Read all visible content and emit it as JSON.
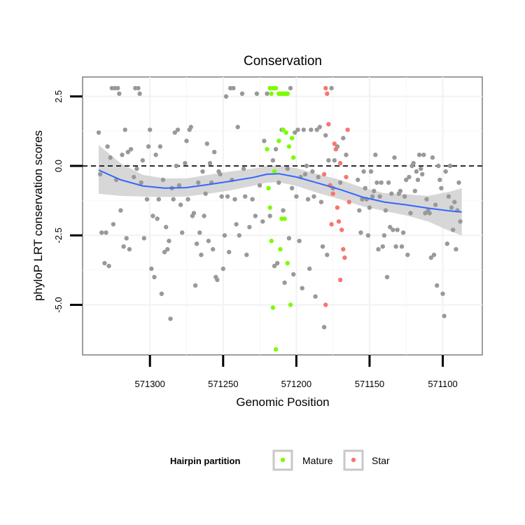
{
  "chart_data": {
    "type": "scatter",
    "title": "Conservation",
    "xlabel": "Genomic Position",
    "ylabel": "phyloP LRT conservation scores",
    "x_reversed": true,
    "xlim": [
      571073,
      571346
    ],
    "ylim": [
      -6.8,
      3.2
    ],
    "x_ticks": [
      571300,
      571250,
      571200,
      571150,
      571100
    ],
    "x_tick_labels": [
      "571300",
      "571250",
      "571200",
      "571150",
      "571100"
    ],
    "y_ticks": [
      2.5,
      0.0,
      -2.5,
      -5.0
    ],
    "y_tick_labels": [
      "2.5",
      "0.0",
      "-2.5",
      "-5.0"
    ],
    "reference_line": {
      "y": 0,
      "style": "dashed"
    },
    "legend": {
      "title": "Hairpin partition",
      "position": "bottom",
      "entries": [
        {
          "label": "Mature",
          "color": "#7CFC00"
        },
        {
          "label": "Star",
          "color": "#F8766D"
        }
      ]
    },
    "colors": {
      "other": "#999999",
      "mature": "#7CFC00",
      "star": "#F8766D",
      "smooth_line": "#3366FF",
      "band": "#d3d3d3"
    },
    "series": [
      {
        "name": "Other",
        "points": [
          [
            571335,
            1.2
          ],
          [
            571334,
            -0.3
          ],
          [
            571333,
            -2.4
          ],
          [
            571331,
            -3.5
          ],
          [
            571330,
            -2.4
          ],
          [
            571329,
            0.7
          ],
          [
            571328,
            -3.6
          ],
          [
            571327,
            0.3
          ],
          [
            571326,
            2.8
          ],
          [
            571325,
            -2.1
          ],
          [
            571324,
            2.8
          ],
          [
            571323,
            -0.5
          ],
          [
            571322,
            2.8
          ],
          [
            571321,
            2.6
          ],
          [
            571320,
            -1.6
          ],
          [
            571319,
            0.4
          ],
          [
            571318,
            -2.9
          ],
          [
            571317,
            1.3
          ],
          [
            571316,
            -2.6
          ],
          [
            571315,
            0.5
          ],
          [
            571314,
            -3.0
          ],
          [
            571313,
            0.6
          ],
          [
            571311,
            -0.4
          ],
          [
            571310,
            2.8
          ],
          [
            571309,
            -0.1
          ],
          [
            571308,
            2.8
          ],
          [
            571307,
            2.6
          ],
          [
            571306,
            -0.6
          ],
          [
            571305,
            0.2
          ],
          [
            571304,
            -2.6
          ],
          [
            571302,
            -1.2
          ],
          [
            571301,
            0.7
          ],
          [
            571300,
            1.3
          ],
          [
            571299,
            -3.7
          ],
          [
            571298,
            -1.8
          ],
          [
            571297,
            -4.0
          ],
          [
            571296,
            0.4
          ],
          [
            571295,
            -1.9
          ],
          [
            571294,
            -1.2
          ],
          [
            571293,
            0.7
          ],
          [
            571292,
            -4.6
          ],
          [
            571291,
            -0.5
          ],
          [
            571290,
            -3.1
          ],
          [
            571289,
            -2.2
          ],
          [
            571288,
            -3.0
          ],
          [
            571287,
            -2.7
          ],
          [
            571286,
            -5.5
          ],
          [
            571285,
            -0.8
          ],
          [
            571284,
            -1.2
          ],
          [
            571283,
            1.2
          ],
          [
            571282,
            0.0
          ],
          [
            571281,
            1.3
          ],
          [
            571280,
            -0.7
          ],
          [
            571279,
            -1.4
          ],
          [
            571278,
            -2.4
          ],
          [
            571276,
            0.1
          ],
          [
            571275,
            0.9
          ],
          [
            571274,
            -1.2
          ],
          [
            571273,
            1.3
          ],
          [
            571272,
            1.4
          ],
          [
            571271,
            -1.8
          ],
          [
            571270,
            -1.7
          ],
          [
            571269,
            -4.3
          ],
          [
            571268,
            -2.8
          ],
          [
            571267,
            -0.6
          ],
          [
            571266,
            -2.4
          ],
          [
            571265,
            -3.2
          ],
          [
            571264,
            -0.2
          ],
          [
            571263,
            -1.8
          ],
          [
            571262,
            -1.0
          ],
          [
            571261,
            0.8
          ],
          [
            571260,
            -2.7
          ],
          [
            571259,
            0.1
          ],
          [
            571258,
            -0.6
          ],
          [
            571257,
            -3.0
          ],
          [
            571256,
            0.5
          ],
          [
            571255,
            -4.0
          ],
          [
            571254,
            -4.1
          ],
          [
            571253,
            -0.2
          ],
          [
            571252,
            -0.3
          ],
          [
            571251,
            -1.1
          ],
          [
            571250,
            -3.7
          ],
          [
            571249,
            -2.5
          ],
          [
            571248,
            2.5
          ],
          [
            571247,
            -1.1
          ],
          [
            571246,
            -3.1
          ],
          [
            571245,
            2.8
          ],
          [
            571244,
            -0.5
          ],
          [
            571243,
            2.8
          ],
          [
            571242,
            -1.2
          ],
          [
            571241,
            -2.1
          ],
          [
            571240,
            1.4
          ],
          [
            571239,
            -2.5
          ],
          [
            571237,
            2.6
          ],
          [
            571236,
            -0.1
          ],
          [
            571235,
            -1.1
          ],
          [
            571234,
            -3.2
          ],
          [
            571232,
            -2.2
          ],
          [
            571230,
            -1.2
          ],
          [
            571228,
            -1.8
          ],
          [
            571227,
            2.6
          ],
          [
            571225,
            -0.7
          ],
          [
            571223,
            -2.0
          ],
          [
            571222,
            0.9
          ],
          [
            571220,
            2.6
          ],
          [
            571218,
            -1.8
          ],
          [
            571216,
            0.2
          ],
          [
            571215,
            -3.6
          ],
          [
            571214,
            0.6
          ],
          [
            571213,
            -3.5
          ],
          [
            571212,
            -0.6
          ],
          [
            571210,
            1.3
          ],
          [
            571209,
            -1.6
          ],
          [
            571208,
            -4.2
          ],
          [
            571206,
            -0.1
          ],
          [
            571205,
            -2.6
          ],
          [
            571204,
            2.8
          ],
          [
            571203,
            -0.8
          ],
          [
            571202,
            -3.9
          ],
          [
            571201,
            1.2
          ],
          [
            571200,
            -1.1
          ],
          [
            571199,
            1.3
          ],
          [
            571198,
            -2.7
          ],
          [
            571197,
            -0.4
          ],
          [
            571196,
            -4.4
          ],
          [
            571195,
            1.3
          ],
          [
            571194,
            -0.3
          ],
          [
            571193,
            0.0
          ],
          [
            571192,
            -1.2
          ],
          [
            571191,
            -3.7
          ],
          [
            571190,
            1.3
          ],
          [
            571189,
            -0.2
          ],
          [
            571188,
            -1.1
          ],
          [
            571187,
            -4.7
          ],
          [
            571186,
            1.3
          ],
          [
            571185,
            -0.4
          ],
          [
            571184,
            1.4
          ],
          [
            571183,
            -1.3
          ],
          [
            571182,
            -2.9
          ],
          [
            571181,
            -5.8
          ],
          [
            571180,
            1.1
          ],
          [
            571179,
            -3.2
          ],
          [
            571178,
            0.2
          ],
          [
            571177,
            -0.7
          ],
          [
            571176,
            2.8
          ],
          [
            571175,
            -0.8
          ],
          [
            571174,
            0.2
          ],
          [
            571172,
            0.7
          ],
          [
            571170,
            -0.6
          ],
          [
            571168,
            1.0
          ],
          [
            571166,
            0.4
          ],
          [
            571158,
            -0.5
          ],
          [
            571157,
            -1.6
          ],
          [
            571156,
            -2.4
          ],
          [
            571155,
            -1.2
          ],
          [
            571154,
            -0.2
          ],
          [
            571153,
            -0.8
          ],
          [
            571152,
            -1.2
          ],
          [
            571151,
            -2.5
          ],
          [
            571150,
            -1.5
          ],
          [
            571149,
            -0.2
          ],
          [
            571148,
            -1.1
          ],
          [
            571147,
            -0.9
          ],
          [
            571146,
            0.4
          ],
          [
            571145,
            -0.6
          ],
          [
            571144,
            -3.0
          ],
          [
            571143,
            -1.1
          ],
          [
            571142,
            -0.6
          ],
          [
            571141,
            -2.9
          ],
          [
            571140,
            -2.5
          ],
          [
            571139,
            -1.6
          ],
          [
            571138,
            -4.0
          ],
          [
            571137,
            -0.6
          ],
          [
            571136,
            -2.2
          ],
          [
            571135,
            -1.0
          ],
          [
            571134,
            -2.3
          ],
          [
            571133,
            0.3
          ],
          [
            571132,
            -2.9
          ],
          [
            571131,
            -2.3
          ],
          [
            571130,
            -1.0
          ],
          [
            571129,
            -0.9
          ],
          [
            571128,
            -2.9
          ],
          [
            571127,
            -2.4
          ],
          [
            571126,
            -1.1
          ],
          [
            571125,
            -0.5
          ],
          [
            571124,
            -3.2
          ],
          [
            571123,
            -0.4
          ],
          [
            571122,
            -1.7
          ],
          [
            571121,
            0.0
          ],
          [
            571120,
            0.1
          ],
          [
            571119,
            -0.9
          ],
          [
            571118,
            -0.2
          ],
          [
            571117,
            -0.5
          ],
          [
            571116,
            0.4
          ],
          [
            571115,
            -0.1
          ],
          [
            571114,
            -0.3
          ],
          [
            571113,
            0.4
          ],
          [
            571112,
            -1.7
          ],
          [
            571111,
            -1.2
          ],
          [
            571110,
            -1.6
          ],
          [
            571109,
            -1.7
          ],
          [
            571108,
            -3.3
          ],
          [
            571107,
            0.3
          ],
          [
            571106,
            -3.2
          ],
          [
            571105,
            -1.4
          ],
          [
            571104,
            -4.3
          ],
          [
            571103,
            0.0
          ],
          [
            571102,
            -0.5
          ],
          [
            571101,
            -0.8
          ],
          [
            571100,
            -4.6
          ],
          [
            571099,
            -5.4
          ],
          [
            571098,
            -0.2
          ],
          [
            571097,
            -2.8
          ],
          [
            571096,
            -1.1
          ],
          [
            571095,
            0.0
          ],
          [
            571094,
            -1.5
          ],
          [
            571093,
            -2.3
          ],
          [
            571092,
            -1.3
          ],
          [
            571091,
            -3.0
          ],
          [
            571090,
            -1.6
          ],
          [
            571089,
            -0.6
          ],
          [
            571088,
            -2.0
          ]
        ]
      },
      {
        "name": "Mature",
        "points": [
          [
            571218,
            2.8
          ],
          [
            571217,
            2.6
          ],
          [
            571216,
            2.8
          ],
          [
            571215,
            2.8
          ],
          [
            571214,
            2.8
          ],
          [
            571212,
            2.6
          ],
          [
            571211,
            2.6
          ],
          [
            571210,
            2.6
          ],
          [
            571209,
            2.6
          ],
          [
            571208,
            2.6
          ],
          [
            571207,
            2.6
          ],
          [
            571206,
            2.6
          ],
          [
            571220,
            0.6
          ],
          [
            571219,
            -0.8
          ],
          [
            571218,
            -1.5
          ],
          [
            571217,
            -2.7
          ],
          [
            571216,
            -5.1
          ],
          [
            571215,
            -0.2
          ],
          [
            571214,
            -6.6
          ],
          [
            571212,
            0.9
          ],
          [
            571211,
            -3.0
          ],
          [
            571210,
            -1.9
          ],
          [
            571209,
            1.3
          ],
          [
            571208,
            -1.9
          ],
          [
            571207,
            1.2
          ],
          [
            571206,
            -3.5
          ],
          [
            571205,
            0.7
          ],
          [
            571204,
            -5.0
          ],
          [
            571203,
            1.0
          ],
          [
            571202,
            0.3
          ]
        ]
      },
      {
        "name": "Star",
        "points": [
          [
            571181,
            -0.3
          ],
          [
            571180,
            2.8
          ],
          [
            571179,
            2.6
          ],
          [
            571178,
            1.5
          ],
          [
            571177,
            -0.7
          ],
          [
            571176,
            -2.1
          ],
          [
            571175,
            -1.0
          ],
          [
            571174,
            0.8
          ],
          [
            571173,
            0.6
          ],
          [
            571172,
            -1.5
          ],
          [
            571171,
            -2.0
          ],
          [
            571170,
            0.1
          ],
          [
            571169,
            -2.3
          ],
          [
            571168,
            -3.0
          ],
          [
            571167,
            -3.3
          ],
          [
            571166,
            -0.4
          ],
          [
            571165,
            1.3
          ],
          [
            571164,
            -1.3
          ],
          [
            571180,
            -5.0
          ],
          [
            571170,
            -4.1
          ]
        ]
      },
      {
        "name": "LOESS fit",
        "x": [
          571335,
          571320,
          571305,
          571290,
          571275,
          571260,
          571245,
          571230,
          571220,
          571212,
          571200,
          571185,
          571170,
          571155,
          571140,
          571125,
          571110,
          571095,
          571087
        ],
        "y": [
          -0.15,
          -0.5,
          -0.72,
          -0.8,
          -0.78,
          -0.67,
          -0.55,
          -0.42,
          -0.3,
          -0.28,
          -0.4,
          -0.62,
          -0.85,
          -1.12,
          -1.3,
          -1.4,
          -1.52,
          -1.62,
          -1.66
        ],
        "band_lower": [
          -1.0,
          -1.08,
          -1.1,
          -1.12,
          -1.1,
          -1.0,
          -0.88,
          -0.72,
          -0.6,
          -0.58,
          -0.72,
          -0.98,
          -1.2,
          -1.45,
          -1.62,
          -1.78,
          -2.0,
          -2.35,
          -2.5
        ],
        "band_upper": [
          0.75,
          0.1,
          -0.32,
          -0.45,
          -0.45,
          -0.32,
          -0.2,
          -0.1,
          0.0,
          0.02,
          -0.08,
          -0.3,
          -0.5,
          -0.78,
          -0.98,
          -1.02,
          -1.08,
          -0.92,
          -0.8
        ]
      }
    ]
  }
}
